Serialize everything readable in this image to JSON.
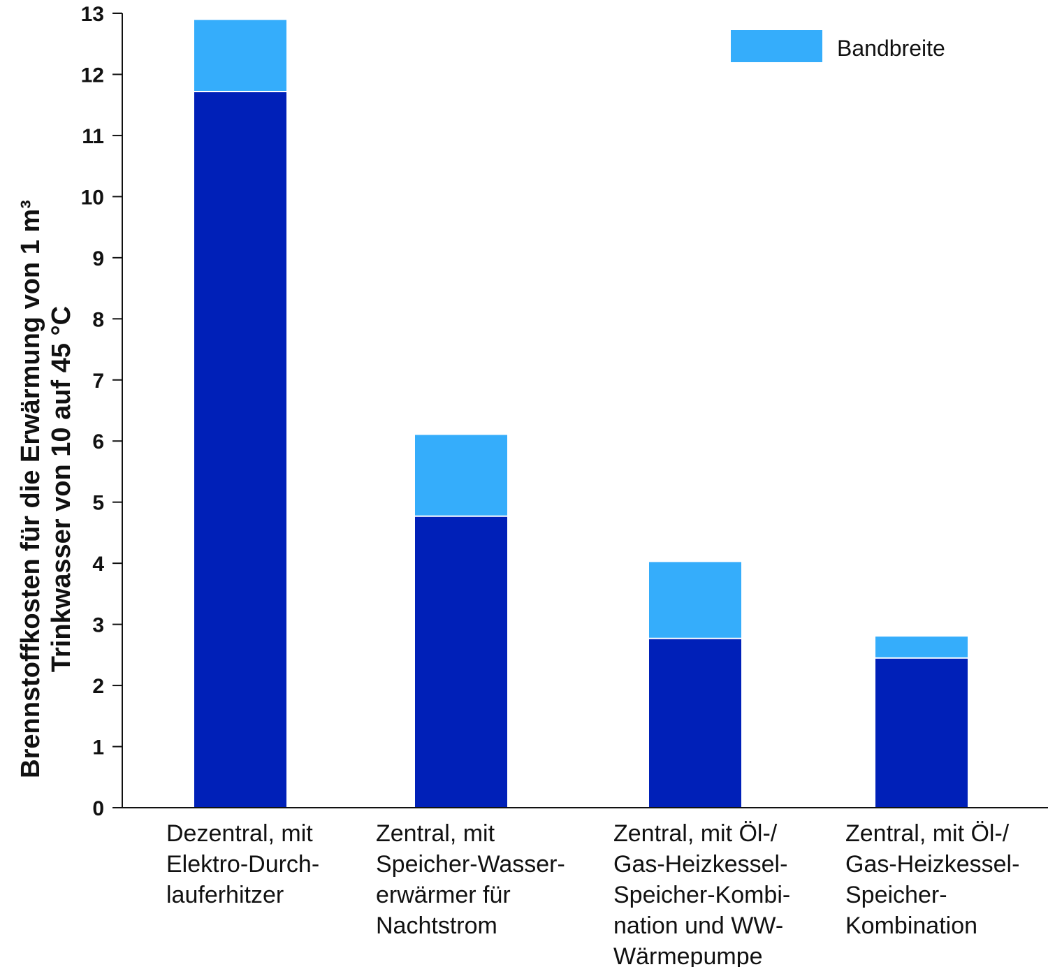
{
  "chart_data": {
    "type": "bar",
    "stacked": true,
    "categories": [
      [
        "Dezentral, mit",
        "Elektro-Durch-",
        "lauferhitzer"
      ],
      [
        "Zentral, mit",
        "Speicher-Wasser-",
        "erwärmer für",
        "Nachtstrom"
      ],
      [
        "Zentral, mit Öl-/",
        "Gas-Heizkessel-",
        "Speicher-Kombi-",
        "nation und WW-",
        "Wärmepumpe"
      ],
      [
        "Zentral, mit Öl-/",
        "Gas-Heizkessel-",
        "Speicher-",
        "Kombination"
      ]
    ],
    "series": [
      {
        "values": [
          11.72,
          4.77,
          2.77,
          2.45
        ],
        "color": "#0020b8"
      },
      {
        "name": "Bandbreite",
        "values": [
          1.17,
          1.33,
          1.25,
          0.35
        ],
        "color": "#35adfb"
      }
    ],
    "ylabel_lines": [
      "Brennstoffkosten für die Erwärmung von 1 m³",
      "Trinkwasser von 10 auf 45 °C"
    ],
    "xlabel": "",
    "ylim": [
      0,
      13
    ],
    "yticks": [
      0,
      1,
      2,
      3,
      4,
      5,
      6,
      7,
      8,
      9,
      10,
      11,
      12,
      13
    ],
    "grid": false,
    "legend": {
      "position": "top-right",
      "entries": [
        "Bandbreite"
      ]
    }
  }
}
